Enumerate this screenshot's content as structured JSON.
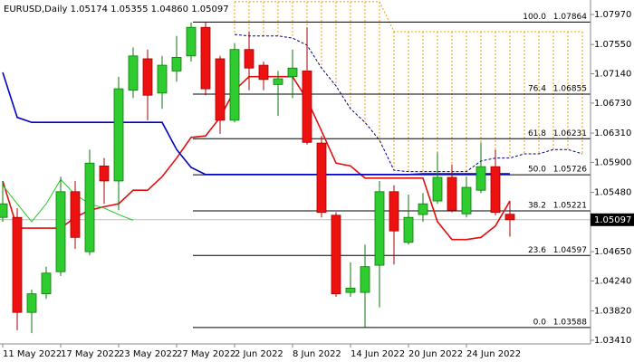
{
  "chart_data": {
    "type": "candlestick",
    "title": "EURUSD,Daily  1.05174 1.05355 1.04860 1.05097",
    "categories": [
      "11 May 2022",
      null,
      null,
      null,
      "17 May 2022",
      null,
      null,
      null,
      "23 May 2022",
      null,
      null,
      null,
      "27 May 2022",
      null,
      null,
      null,
      "2 Jun 2022",
      null,
      null,
      null,
      "8 Jun 2022",
      null,
      null,
      null,
      "14 Jun 2022",
      null,
      null,
      null,
      "20 Jun 2022",
      null,
      null,
      null,
      "24 Jun 2022",
      null,
      null,
      null,
      null,
      null,
      null,
      null,
      null
    ],
    "open": [
      1.0513,
      1.0513,
      1.038,
      1.0406,
      1.0437,
      1.0549,
      1.0465,
      1.0585,
      1.0564,
      1.0691,
      1.0735,
      1.0687,
      1.0718,
      1.0739,
      1.0779,
      1.0735,
      1.0649,
      1.0748,
      1.0726,
      1.0699,
      1.071,
      1.0718,
      1.0617,
      1.0516,
      1.0408,
      1.0408,
      1.0446,
      1.0549,
      1.0478,
      1.0517,
      1.0536,
      1.0569,
      1.0518,
      1.0551,
      1.0584,
      1.05174,
      null,
      null,
      null,
      null,
      null
    ],
    "high": [
      1.0564,
      1.0526,
      1.0412,
      1.0444,
      1.057,
      1.0564,
      1.0608,
      1.0596,
      1.071,
      1.0751,
      1.0748,
      1.0739,
      1.0767,
      1.0786,
      1.0786,
      1.0739,
      1.0757,
      1.0773,
      1.0731,
      1.0718,
      1.0748,
      1.0779,
      1.0627,
      1.052,
      1.045,
      1.0475,
      1.0564,
      1.0558,
      1.0545,
      1.0547,
      1.0604,
      1.0587,
      1.057,
      1.0618,
      1.0608,
      1.05355,
      null,
      null,
      null,
      null,
      null
    ],
    "low": [
      1.0507,
      1.0355,
      1.0351,
      1.0399,
      1.0431,
      1.0469,
      1.046,
      1.0532,
      1.0523,
      1.068,
      1.0649,
      1.0665,
      1.0703,
      1.0731,
      1.0684,
      1.063,
      1.0646,
      1.0691,
      1.0691,
      1.0655,
      1.068,
      1.0615,
      1.0513,
      1.0402,
      1.0402,
      1.0359,
      1.0387,
      1.0447,
      1.0475,
      1.0507,
      1.0532,
      1.052,
      1.0513,
      1.0547,
      1.0516,
      1.0486,
      null,
      null,
      null,
      null,
      null
    ],
    "close": [
      1.0532,
      1.038,
      1.0406,
      1.0435,
      1.0549,
      1.0485,
      1.0589,
      1.0564,
      1.0693,
      1.0739,
      1.0684,
      1.0726,
      1.0737,
      1.0779,
      1.0693,
      1.0649,
      1.0748,
      1.0722,
      1.0706,
      1.0707,
      1.0722,
      1.0618,
      1.052,
      1.0406,
      1.0414,
      1.0444,
      1.0549,
      1.0494,
      1.0513,
      1.0532,
      1.0569,
      1.0523,
      1.0555,
      1.0584,
      1.052,
      1.05097,
      null,
      null,
      null,
      null,
      null
    ],
    "up_color": "#2ecc2e",
    "down_color": "#ee1111",
    "series": [
      {
        "color": "#e01010",
        "values": [
          1.0564,
          1.0498,
          1.0498,
          1.0498,
          1.0498,
          1.0513,
          1.0523,
          1.0528,
          1.0532,
          1.0551,
          1.0551,
          1.057,
          1.0596,
          1.0625,
          1.0627,
          1.0653,
          1.0691,
          1.071,
          1.071,
          1.071,
          1.071,
          1.0678,
          1.0634,
          1.0589,
          1.0585,
          1.0568,
          1.0568,
          1.0568,
          1.0568,
          1.0568,
          1.0507,
          1.0482,
          1.0482,
          1.0485,
          1.0501,
          1.0536,
          null,
          null,
          null,
          null,
          null
        ]
      },
      {
        "color": "#0000c0",
        "values": [
          1.0716,
          1.0653,
          1.0646,
          1.0646,
          1.0646,
          1.0646,
          1.0646,
          1.0646,
          1.0646,
          1.0646,
          1.0646,
          1.0646,
          1.0608,
          1.0583,
          1.0573,
          1.0573,
          1.0573,
          1.0573,
          1.0573,
          1.0573,
          1.0573,
          1.0573,
          1.0573,
          1.0573,
          1.0573,
          1.0573,
          1.0573,
          1.0573,
          1.0573,
          1.0574,
          1.0574,
          1.0574,
          1.0574,
          1.0574,
          1.0574,
          1.0574,
          null,
          null,
          null,
          null,
          null
        ]
      },
      {
        "color": "#22cc22",
        "values": [
          1.0558,
          1.0532,
          1.0507,
          1.0532,
          1.0566,
          1.0545,
          1.0532,
          1.0526,
          1.0517,
          1.0509,
          null,
          null,
          null,
          null,
          null,
          null,
          null,
          null,
          null,
          null,
          null,
          null,
          null,
          null,
          null,
          null,
          null,
          null,
          null,
          null,
          null,
          null,
          null,
          null,
          null,
          null,
          null,
          null,
          null,
          null,
          null
        ]
      }
    ],
    "cloud": {
      "color": "#ff9900",
      "lower_color": "#000080",
      "upper": [
        null,
        null,
        null,
        null,
        null,
        null,
        null,
        null,
        null,
        null,
        null,
        null,
        null,
        null,
        null,
        null,
        1.0815,
        1.0815,
        1.0815,
        1.0815,
        1.0815,
        1.0815,
        1.0815,
        1.0815,
        1.0815,
        1.0815,
        1.0815,
        1.0773,
        1.0773,
        1.0773,
        1.0773,
        1.0773,
        1.0773,
        1.0773,
        1.0773,
        1.0773,
        1.0773,
        1.0773,
        1.0773,
        1.0773,
        1.0773
      ],
      "lower": [
        null,
        null,
        null,
        null,
        null,
        null,
        null,
        null,
        null,
        null,
        null,
        null,
        null,
        null,
        null,
        null,
        1.0769,
        1.0767,
        1.0767,
        1.0767,
        1.0764,
        1.0754,
        1.0722,
        1.0697,
        1.0665,
        1.0646,
        1.0621,
        1.0579,
        1.0577,
        1.0577,
        1.0577,
        1.0577,
        1.0577,
        1.0592,
        1.0596,
        1.0596,
        1.0602,
        1.0602,
        1.0608,
        1.0608,
        1.0602
      ]
    },
    "fibonacci": [
      {
        "ratio": "100.0",
        "price": 1.07864
      },
      {
        "ratio": "76.4",
        "price": 1.06855
      },
      {
        "ratio": "61.8",
        "price": 1.06231
      },
      {
        "ratio": "50.0",
        "price": 1.05726
      },
      {
        "ratio": "38.2",
        "price": 1.05221
      },
      {
        "ratio": "23.6",
        "price": 1.04597
      },
      {
        "ratio": "0.0",
        "price": 1.03588
      }
    ],
    "ylim": [
      1.03359,
      1.08173
    ],
    "yticks": [
      {
        "value": 1.0797,
        "label": "1.07970"
      },
      {
        "value": 1.0755,
        "label": "1.07550"
      },
      {
        "value": 1.0714,
        "label": "1.07140"
      },
      {
        "value": 1.0673,
        "label": "1.06730"
      },
      {
        "value": 1.0631,
        "label": "1.06310"
      },
      {
        "value": 1.059,
        "label": "1.05900"
      },
      {
        "value": 1.0548,
        "label": "1.05480"
      },
      {
        "value": 1.0465,
        "label": "1.04650"
      },
      {
        "value": 1.0424,
        "label": "1.04240"
      },
      {
        "value": 1.0382,
        "label": "1.03820"
      },
      {
        "value": 1.0341,
        "label": "1.03410"
      }
    ],
    "grid": false
  }
}
